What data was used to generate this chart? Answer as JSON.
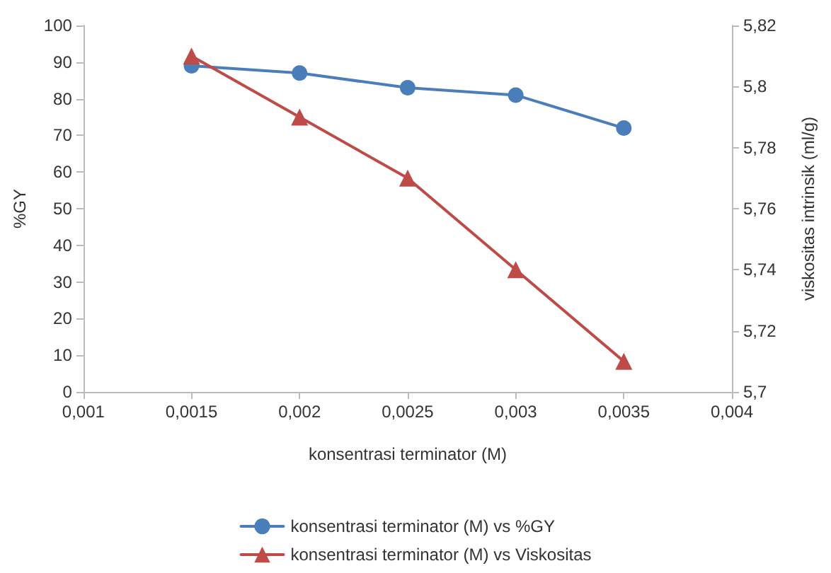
{
  "chart_data": {
    "type": "line",
    "xlabel": "konsentrasi terminator (M)",
    "ylabel": "%GY",
    "y2label": "viskositas intrinsik (ml/g)",
    "x": [
      0.0015,
      0.002,
      0.0025,
      0.003,
      0.0035
    ],
    "series": [
      {
        "name": "konsentrasi terminator (M) vs %GY",
        "color": "#4a7ebb",
        "values": [
          89,
          87,
          83,
          81,
          72
        ],
        "marker": "circle"
      },
      {
        "name": "konsentrasi terminator (M) vs Viskositas",
        "color": "#be4b48",
        "values": [
          5.81,
          5.79,
          5.77,
          5.74,
          5.71
        ],
        "marker": "triangle",
        "axis": "y2"
      }
    ],
    "xlim": [
      0.001,
      0.004
    ],
    "xticks": [
      {
        "value": 0.001,
        "label": "0,001"
      },
      {
        "value": 0.0015,
        "label": "0,0015"
      },
      {
        "value": 0.002,
        "label": "0,002"
      },
      {
        "value": 0.0025,
        "label": "0,0025"
      },
      {
        "value": 0.003,
        "label": "0,003"
      },
      {
        "value": 0.0035,
        "label": "0,0035"
      },
      {
        "value": 0.004,
        "label": "0,004"
      }
    ],
    "ylim": [
      0,
      100
    ],
    "yticks": [
      0,
      10,
      20,
      30,
      40,
      50,
      60,
      70,
      80,
      90,
      100
    ],
    "y2lim": [
      5.7,
      5.82
    ],
    "y2ticks": [
      {
        "value": 5.7,
        "label": "5,7"
      },
      {
        "value": 5.72,
        "label": "5,72"
      },
      {
        "value": 5.74,
        "label": "5,74"
      },
      {
        "value": 5.76,
        "label": "5,76"
      },
      {
        "value": 5.78,
        "label": "5,78"
      },
      {
        "value": 5.8,
        "label": "5,8"
      },
      {
        "value": 5.82,
        "label": "5,82"
      }
    ],
    "grid": false,
    "legend": "bottom",
    "line_style": "solid"
  }
}
